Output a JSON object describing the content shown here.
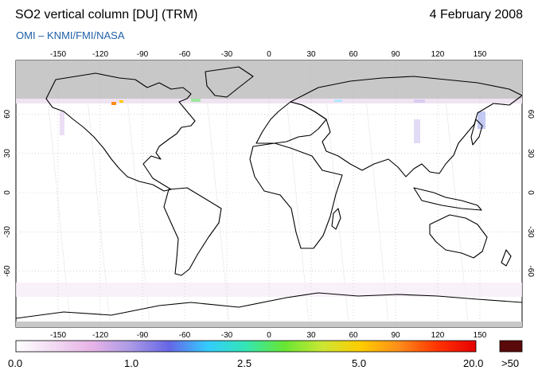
{
  "header": {
    "title": "SO2 vertical column [DU] (TRM)",
    "date": "4 February 2008",
    "credit": "OMI  –  KNMI/FMI/NASA"
  },
  "map": {
    "lon_ticks": [
      "-150",
      "-120",
      "-90",
      "-60",
      "-30",
      "0",
      "30",
      "60",
      "90",
      "120",
      "150"
    ],
    "lat_ticks": [
      "60",
      "30",
      "0",
      "-30",
      "-60"
    ],
    "no_data_color": "#c8c8c8",
    "coastline_color": "#000000"
  },
  "colorbar": {
    "labels": [
      "0.0",
      "1.0",
      "2.5",
      "5.0",
      "20.0",
      ">50"
    ],
    "stops": [
      "#ffffff",
      "#f2d9f2",
      "#e6b3e6",
      "#aa99e6",
      "#6666e6",
      "#33ccff",
      "#33e6b3",
      "#66e633",
      "#cce633",
      "#ffcc00",
      "#ff8c1a",
      "#ff3300",
      "#e60000"
    ],
    "overflow_color": "#5a0a0a"
  }
}
